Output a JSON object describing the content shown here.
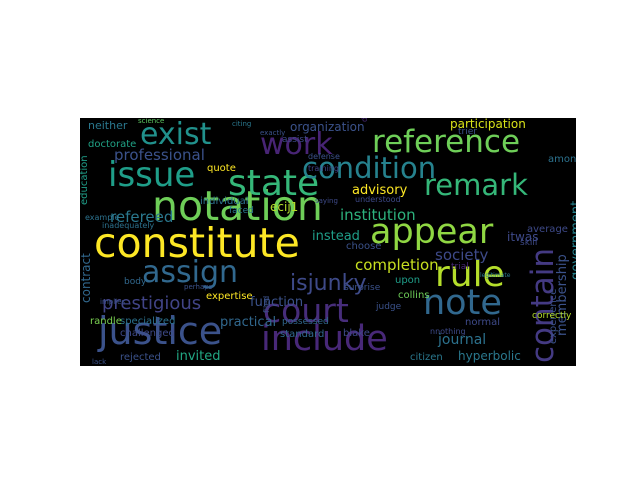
{
  "word_cloud": {
    "background": "#000000",
    "words": [
      {
        "text": "constitute",
        "color": "#fde725"
      },
      {
        "text": "notation",
        "color": "#6ece58"
      },
      {
        "text": "justice",
        "color": "#3b528b"
      },
      {
        "text": "include",
        "color": "#482878"
      },
      {
        "text": "state",
        "color": "#35b779"
      },
      {
        "text": "issue",
        "color": "#1f9e89"
      },
      {
        "text": "court",
        "color": "#472d7b"
      },
      {
        "text": "note",
        "color": "#31688e"
      },
      {
        "text": "rule",
        "color": "#b5de2b"
      },
      {
        "text": "contain",
        "color": "#443a83"
      },
      {
        "text": "appear",
        "color": "#90d743"
      },
      {
        "text": "assign",
        "color": "#31688e"
      },
      {
        "text": "reference",
        "color": "#6ece58"
      },
      {
        "text": "condition",
        "color": "#26828e"
      },
      {
        "text": "remark",
        "color": "#35b779"
      },
      {
        "text": "exist",
        "color": "#21918c"
      },
      {
        "text": "work",
        "color": "#482475"
      },
      {
        "text": "isjunky",
        "color": "#3e4a89"
      },
      {
        "text": "prestigious",
        "color": "#414487"
      },
      {
        "text": "professional",
        "color": "#3b528b"
      },
      {
        "text": "institution",
        "color": "#2db27d"
      },
      {
        "text": "completion",
        "color": "#c8e020"
      },
      {
        "text": "journal",
        "color": "#2c728e"
      },
      {
        "text": "refereed",
        "color": "#2a788e"
      },
      {
        "text": "society",
        "color": "#3e4a89"
      },
      {
        "text": "membership",
        "color": "#3b528b"
      },
      {
        "text": "government",
        "color": "#26828e"
      },
      {
        "text": "advisory",
        "color": "#fde725"
      },
      {
        "text": "participation",
        "color": "#d8e219"
      },
      {
        "text": "organization",
        "color": "#3b528b"
      },
      {
        "text": "hyperbolic",
        "color": "#2a788e"
      },
      {
        "text": "invited",
        "color": "#22a884"
      },
      {
        "text": "practical",
        "color": "#31688e"
      },
      {
        "text": "instead",
        "color": "#1f9e89"
      },
      {
        "text": "contract",
        "color": "#31688e"
      },
      {
        "text": "function",
        "color": "#3b528b"
      },
      {
        "text": "ecij1",
        "color": "#b5de2b"
      },
      {
        "text": "itwas",
        "color": "#3e4a89"
      },
      {
        "text": "neither",
        "color": "#2a788e"
      },
      {
        "text": "doctorate",
        "color": "#20a386"
      },
      {
        "text": "education",
        "color": "#1f9e89"
      },
      {
        "text": "individual",
        "color": "#2c728e"
      },
      {
        "text": "specialized",
        "color": "#2c728e"
      },
      {
        "text": "expertise",
        "color": "#fde725"
      },
      {
        "text": "randle",
        "color": "#7ad151"
      },
      {
        "text": "challenged",
        "color": "#3e4a89"
      },
      {
        "text": "rejected",
        "color": "#3b528b"
      },
      {
        "text": "citizen",
        "color": "#2a788e"
      },
      {
        "text": "normal",
        "color": "#3e4a89"
      },
      {
        "text": "experience",
        "color": "#3b528b"
      },
      {
        "text": "collins",
        "color": "#6ece58"
      },
      {
        "text": "standard",
        "color": "#31688e"
      },
      {
        "text": "blake",
        "color": "#3e4a89"
      },
      {
        "text": "upon",
        "color": "#1f9e89"
      },
      {
        "text": "choose",
        "color": "#3b528b"
      },
      {
        "text": "average",
        "color": "#3e4a89"
      },
      {
        "text": "among",
        "color": "#2c728e"
      },
      {
        "text": "correctly",
        "color": "#b5de2b"
      },
      {
        "text": "possessed",
        "color": "#31688e"
      },
      {
        "text": "body",
        "color": "#31688e"
      },
      {
        "text": "judge",
        "color": "#3b528b"
      },
      {
        "text": "skill",
        "color": "#3e4a89"
      },
      {
        "text": "trial",
        "color": "#482878"
      },
      {
        "text": "quote",
        "color": "#fde725"
      },
      {
        "text": "faced",
        "color": "#2a788e"
      },
      {
        "text": "surprise",
        "color": "#3b528b"
      },
      {
        "text": "assist",
        "color": "#3e4a89"
      },
      {
        "text": "trier",
        "color": "#3b528b"
      },
      {
        "text": "science",
        "color": "#5ec962"
      },
      {
        "text": "citing",
        "color": "#2a788e"
      },
      {
        "text": "defense",
        "color": "#3b528b"
      },
      {
        "text": "training",
        "color": "#414487"
      },
      {
        "text": "degree",
        "color": "#482878"
      },
      {
        "text": "example",
        "color": "#2c728e"
      },
      {
        "text": "inadequately",
        "color": "#2c728e"
      },
      {
        "text": "saying",
        "color": "#3e4a89"
      },
      {
        "text": "exactly",
        "color": "#3b528b"
      },
      {
        "text": "filed",
        "color": "#3b528b"
      },
      {
        "text": "understood",
        "color": "#3e4a89"
      },
      {
        "text": "nnothing",
        "color": "#3e4a89"
      },
      {
        "text": "legitimate",
        "color": "#2a788e"
      },
      {
        "text": "perhaps",
        "color": "#3b528b"
      },
      {
        "text": "implies",
        "color": "#3b528b"
      },
      {
        "text": "lack",
        "color": "#3b528b"
      }
    ]
  }
}
